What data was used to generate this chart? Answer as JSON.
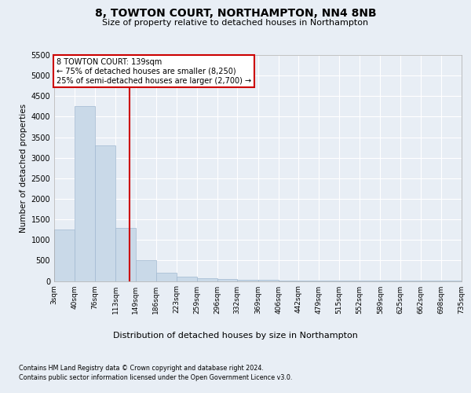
{
  "title": "8, TOWTON COURT, NORTHAMPTON, NN4 8NB",
  "subtitle": "Size of property relative to detached houses in Northampton",
  "xlabel": "Distribution of detached houses by size in Northampton",
  "ylabel": "Number of detached properties",
  "footer_line1": "Contains HM Land Registry data © Crown copyright and database right 2024.",
  "footer_line2": "Contains public sector information licensed under the Open Government Licence v3.0.",
  "annotation_title": "8 TOWTON COURT: 139sqm",
  "annotation_line1": "← 75% of detached houses are smaller (8,250)",
  "annotation_line2": "25% of semi-detached houses are larger (2,700) →",
  "bar_color": "#c9d9e8",
  "bar_edge_color": "#a0b8d0",
  "vline_color": "#cc0000",
  "vline_x": 139,
  "annotation_box_color": "#cc0000",
  "annotation_fill": "#ffffff",
  "bins": [
    3,
    40,
    76,
    113,
    149,
    186,
    223,
    259,
    296,
    332,
    369,
    406,
    442,
    479,
    515,
    552,
    589,
    625,
    662,
    698,
    735
  ],
  "counts": [
    1250,
    4250,
    3300,
    1300,
    500,
    200,
    100,
    75,
    50,
    30,
    20,
    15,
    10,
    8,
    5,
    4,
    3,
    2,
    2,
    1
  ],
  "ylim": [
    0,
    5500
  ],
  "yticks": [
    0,
    500,
    1000,
    1500,
    2000,
    2500,
    3000,
    3500,
    4000,
    4500,
    5000,
    5500
  ],
  "background_color": "#e8eef5",
  "plot_bg_color": "#e8eef5",
  "grid_color": "#ffffff"
}
